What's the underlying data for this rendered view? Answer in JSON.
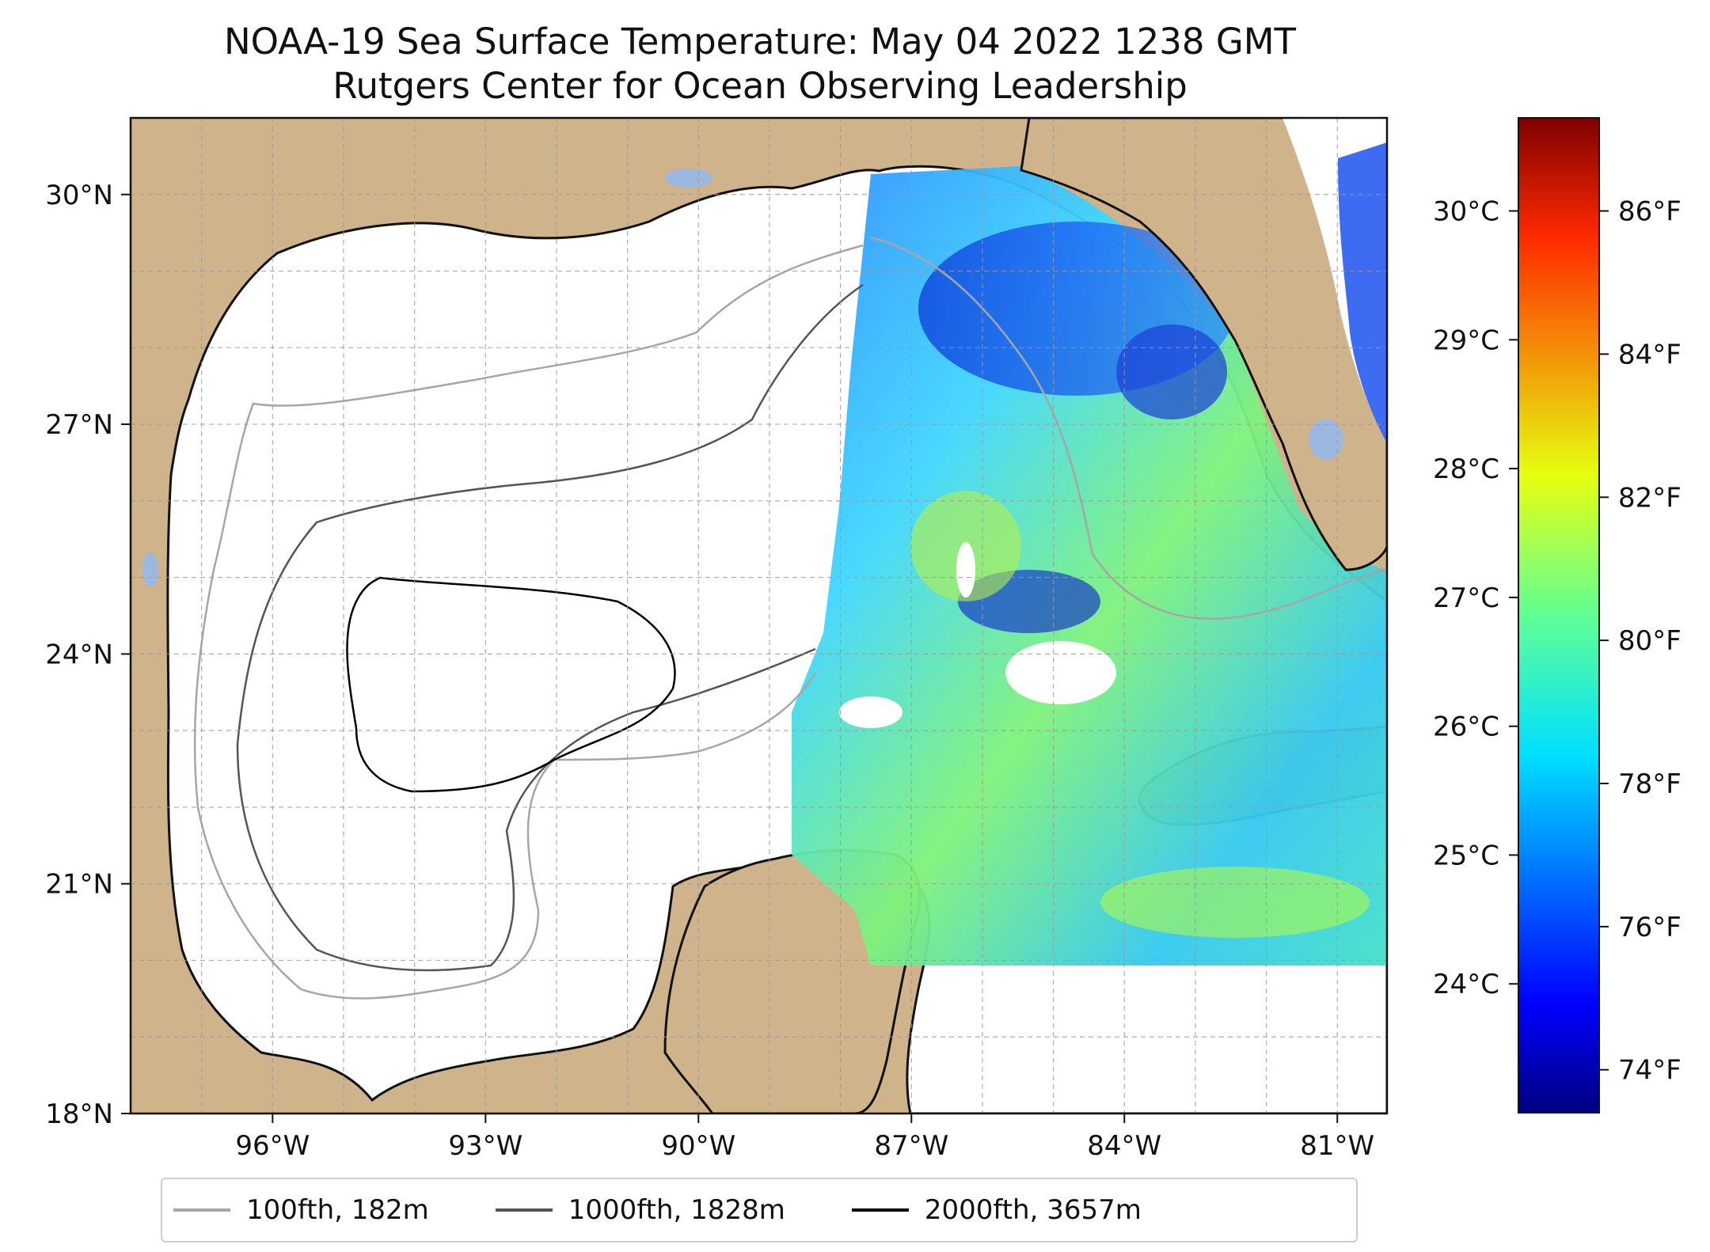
{
  "title": {
    "line1": "NOAA-19 Sea Surface Temperature: May 04 2022 1238 GMT",
    "line2": "Rutgers Center for Ocean Observing Leadership"
  },
  "map": {
    "extent": {
      "lon_min": -98,
      "lon_max": -80.3,
      "lat_min": 18,
      "lat_max": 31
    },
    "lon_ticks": [
      {
        "value": -96,
        "label": "96°W"
      },
      {
        "value": -93,
        "label": "93°W"
      },
      {
        "value": -90,
        "label": "90°W"
      },
      {
        "value": -87,
        "label": "87°W"
      },
      {
        "value": -84,
        "label": "84°W"
      },
      {
        "value": -81,
        "label": "81°W"
      }
    ],
    "lat_ticks": [
      {
        "value": 30,
        "label": "30°N"
      },
      {
        "value": 27,
        "label": "27°N"
      },
      {
        "value": 24,
        "label": "24°N"
      },
      {
        "value": 21,
        "label": "21°N"
      },
      {
        "value": 18,
        "label": "18°N"
      }
    ],
    "gridlines": "dashed, every 1 degree",
    "land_color": "#cfb38b",
    "lake_color": "#9db8e0",
    "ocean_no_data_color": "#ffffff"
  },
  "colorbar": {
    "colormap": "jet",
    "f_min": 73.4,
    "f_max": 87.3,
    "celsius_ticks": [
      {
        "value": 24,
        "label": "24°C"
      },
      {
        "value": 25,
        "label": "25°C"
      },
      {
        "value": 26,
        "label": "26°C"
      },
      {
        "value": 27,
        "label": "27°C"
      },
      {
        "value": 28,
        "label": "28°C"
      },
      {
        "value": 29,
        "label": "29°C"
      },
      {
        "value": 30,
        "label": "30°C"
      }
    ],
    "fahrenheit_ticks": [
      {
        "value": 74,
        "label": "74°F"
      },
      {
        "value": 76,
        "label": "76°F"
      },
      {
        "value": 78,
        "label": "78°F"
      },
      {
        "value": 80,
        "label": "80°F"
      },
      {
        "value": 82,
        "label": "82°F"
      },
      {
        "value": 84,
        "label": "84°F"
      },
      {
        "value": 86,
        "label": "86°F"
      }
    ]
  },
  "legend": {
    "items": [
      {
        "label": "100fth, 182m",
        "color": "#a6a6a6"
      },
      {
        "label": "1000fth, 1828m",
        "color": "#555555"
      },
      {
        "label": "2000fth, 3657m",
        "color": "#000000"
      }
    ]
  }
}
